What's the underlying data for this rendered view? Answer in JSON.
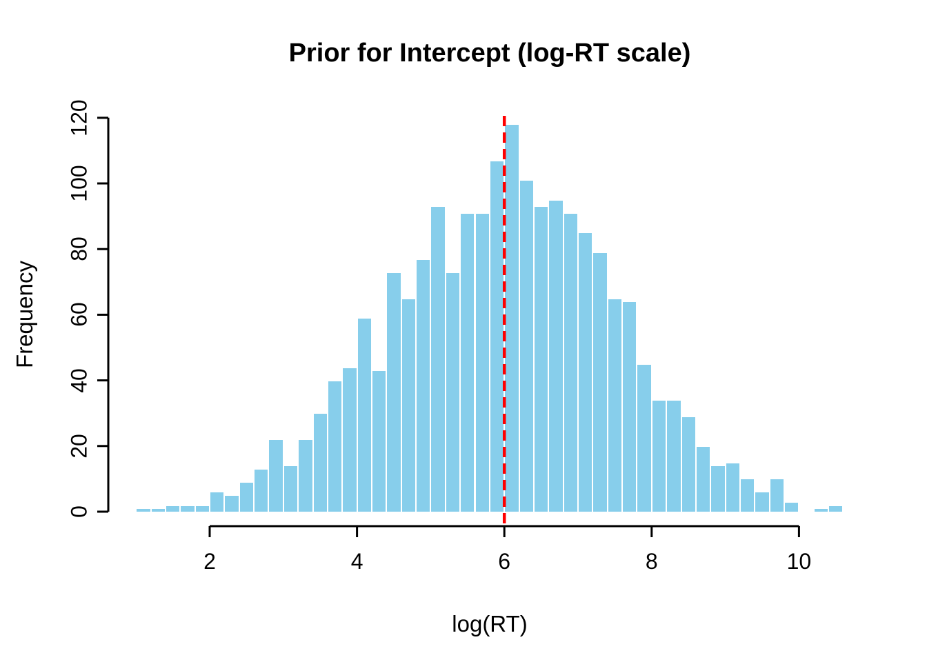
{
  "chart_data": {
    "type": "bar",
    "subtype": "histogram",
    "title": "Prior for Intercept (log-RT scale)",
    "xlabel": "log(RT)",
    "ylabel": "Frequency",
    "bin_start": 1.0,
    "bin_width": 0.2,
    "counts": [
      1,
      1,
      2,
      2,
      2,
      6,
      5,
      9,
      13,
      22,
      14,
      22,
      30,
      40,
      44,
      59,
      43,
      73,
      65,
      77,
      93,
      73,
      91,
      91,
      107,
      118,
      101,
      93,
      95,
      91,
      85,
      79,
      65,
      64,
      45,
      34,
      34,
      29,
      20,
      14,
      15,
      10,
      6,
      10,
      3,
      0,
      1,
      2
    ],
    "x_ticks": [
      2,
      4,
      6,
      8,
      10
    ],
    "y_ticks": [
      0,
      20,
      40,
      60,
      80,
      100,
      120
    ],
    "xlim": [
      1.0,
      10.6
    ],
    "ylim": [
      0,
      120
    ],
    "grid": false,
    "legend": null,
    "vline": {
      "x": 6,
      "style": "dashed",
      "color": "#FF0000"
    },
    "colors": {
      "bar_fill": "#87CEEB",
      "bar_border": "#FFFFFF",
      "axis": "#000000",
      "text": "#000000",
      "background": "#FFFFFF"
    }
  }
}
